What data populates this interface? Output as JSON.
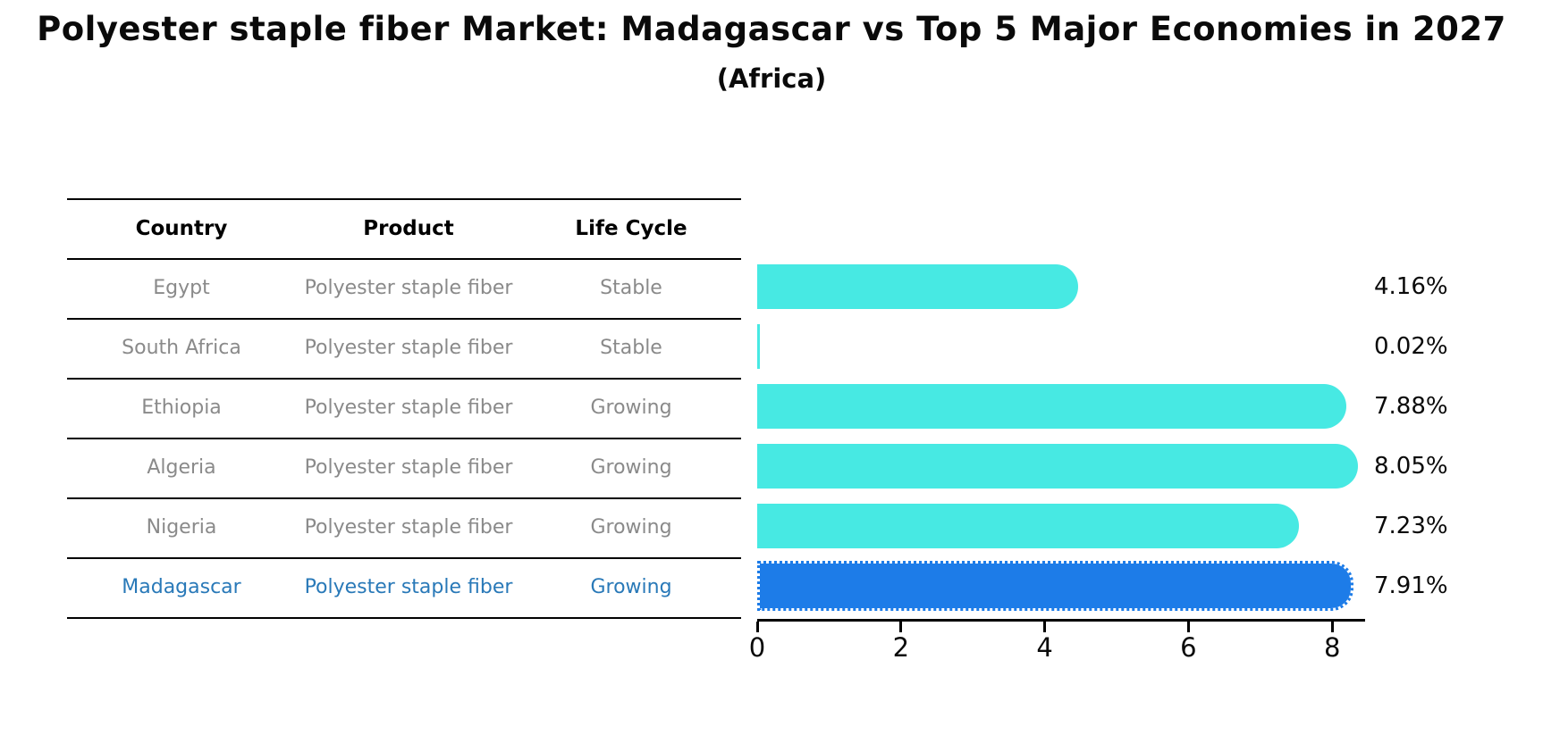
{
  "title": "Polyester staple fiber Market: Madagascar vs Top 5 Major Economies in 2027",
  "subtitle": "(Africa)",
  "table": {
    "headers": {
      "country": "Country",
      "product": "Product",
      "life_cycle": "Life Cycle"
    },
    "rows": [
      {
        "country": "Egypt",
        "product": "Polyester staple fiber",
        "life_cycle": "Stable",
        "highlight": false
      },
      {
        "country": "South Africa",
        "product": "Polyester staple fiber",
        "life_cycle": "Stable",
        "highlight": false
      },
      {
        "country": "Ethiopia",
        "product": "Polyester staple fiber",
        "life_cycle": "Growing",
        "highlight": false
      },
      {
        "country": "Algeria",
        "product": "Polyester staple fiber",
        "life_cycle": "Growing",
        "highlight": false
      },
      {
        "country": "Nigeria",
        "product": "Polyester staple fiber",
        "life_cycle": "Growing",
        "highlight": false
      },
      {
        "country": "Madagascar",
        "product": "Polyester staple fiber",
        "life_cycle": "Growing",
        "highlight": true
      }
    ]
  },
  "chart_data": {
    "type": "bar",
    "orientation": "horizontal",
    "title": "Polyester staple fiber Market: Madagascar vs Top 5 Major Economies in 2027 (Africa)",
    "categories": [
      "Egypt",
      "South Africa",
      "Ethiopia",
      "Algeria",
      "Nigeria",
      "Madagascar"
    ],
    "values": [
      4.16,
      0.02,
      7.88,
      8.05,
      7.23,
      7.91
    ],
    "value_labels": [
      "4.16%",
      "0.02%",
      "7.88%",
      "8.05%",
      "7.23%",
      "7.91%"
    ],
    "x_ticks": [
      0,
      2,
      4,
      6,
      8
    ],
    "xlim": [
      0,
      8.45
    ],
    "grid": false,
    "legend": false,
    "bar_color": "#47e9e3",
    "highlight_bar_color": "#1d7ce8",
    "highlight_index": 5
  },
  "colors": {
    "bar_cyan": "#47e9e3",
    "bar_blue": "#1d7ce8",
    "highlight_text": "#2979b8",
    "row_text": "#8a8a8a",
    "header_text": "#000000",
    "axis": "#000000"
  }
}
